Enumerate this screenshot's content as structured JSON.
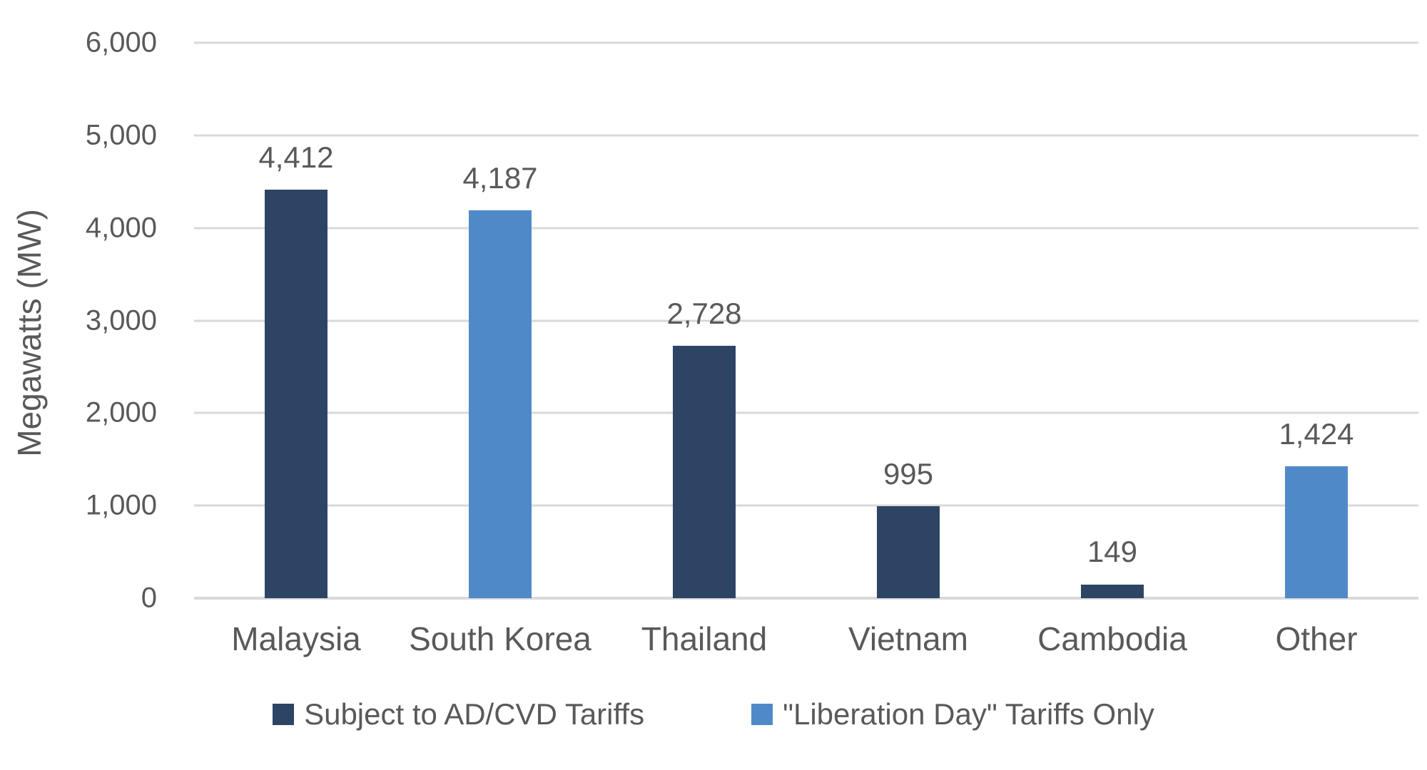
{
  "chart_data": {
    "type": "bar",
    "title": "",
    "xlabel": "",
    "ylabel": "Megawatts (MW)",
    "ylim": [
      0,
      6000
    ],
    "ytick_step": 1000,
    "yticks": [
      "6,000",
      "5,000",
      "4,000",
      "3,000",
      "2,000",
      "1,000",
      "0"
    ],
    "grid": true,
    "gridline_color": "#d9d9d9",
    "text_color": "#595959",
    "legend_position": "bottom",
    "categories": [
      "Malaysia",
      "South Korea",
      "Thailand",
      "Vietnam",
      "Cambodia",
      "Other"
    ],
    "values": [
      4412,
      4187,
      2728,
      995,
      149,
      1424
    ],
    "series": [
      {
        "name": "Subject to AD/CVD Tariffs",
        "color": "#2d4465"
      },
      {
        "name": "\"Liberation Day\" Tariffs Only",
        "color": "#5089c8"
      }
    ],
    "bars": [
      {
        "category": "Malaysia",
        "value": 4412,
        "label": "4,412",
        "series_index": 0
      },
      {
        "category": "South Korea",
        "value": 4187,
        "label": "4,187",
        "series_index": 1
      },
      {
        "category": "Thailand",
        "value": 2728,
        "label": "2,728",
        "series_index": 0
      },
      {
        "category": "Vietnam",
        "value": 995,
        "label": "995",
        "series_index": 0
      },
      {
        "category": "Cambodia",
        "value": 149,
        "label": "149",
        "series_index": 0
      },
      {
        "category": "Other",
        "value": 1424,
        "label": "1,424",
        "series_index": 1
      }
    ]
  }
}
